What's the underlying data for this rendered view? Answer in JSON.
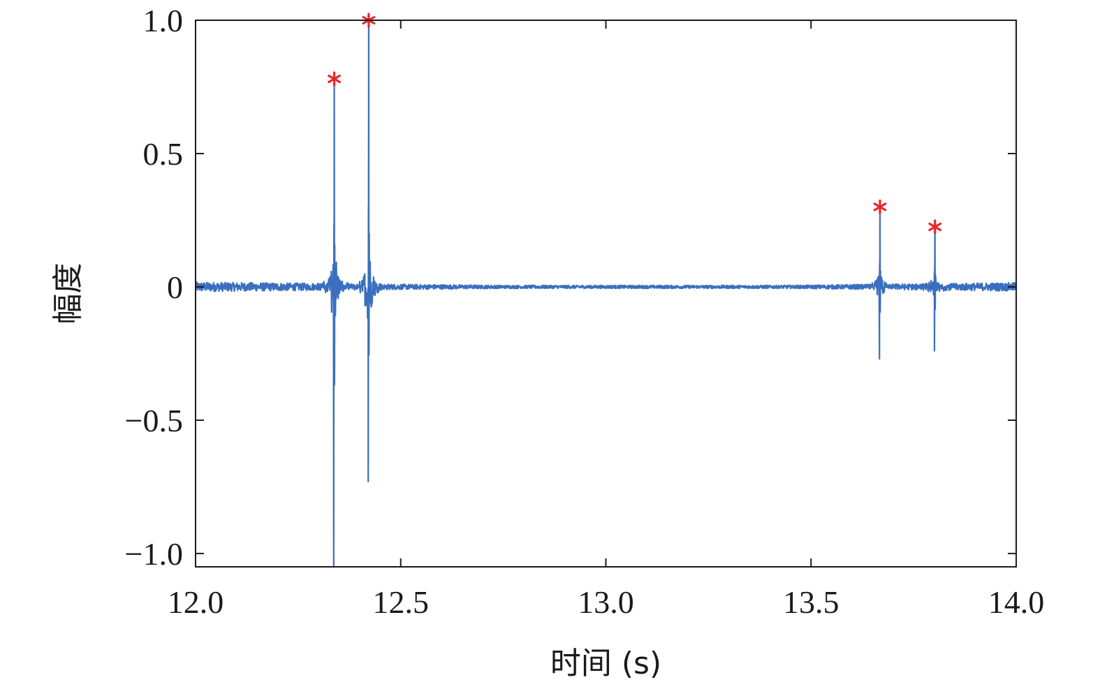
{
  "chart_data": {
    "type": "line",
    "title": "",
    "xlabel": "时间 (s)",
    "ylabel": "幅度",
    "xlim": [
      12.0,
      14.0
    ],
    "ylim": [
      -1.05,
      1.0
    ],
    "xticks": [
      12.0,
      12.5,
      13.0,
      13.5,
      14.0
    ],
    "xtick_labels": [
      "12.0",
      "12.5",
      "13.0",
      "13.5",
      "14.0"
    ],
    "yticks": [
      1.0,
      0.5,
      0,
      -0.5,
      -1.0
    ],
    "ytick_labels": [
      "1.0",
      "0.5",
      "0",
      "−0.5",
      "−1.0"
    ],
    "grid": false,
    "line_color": "#3a6fbf",
    "marker_color": "#e8262b",
    "events": [
      {
        "x": 12.338,
        "peak": 0.78,
        "trough": -1.05
      },
      {
        "x": 12.422,
        "peak": 1.0,
        "trough": -0.73
      },
      {
        "x": 13.668,
        "peak": 0.3,
        "trough": -0.27
      },
      {
        "x": 13.802,
        "peak": 0.225,
        "trough": -0.24
      }
    ],
    "peak_markers": [
      {
        "x": 12.338,
        "y": 0.78
      },
      {
        "x": 12.422,
        "y": 1.0
      },
      {
        "x": 13.668,
        "y": 0.3
      },
      {
        "x": 13.802,
        "y": 0.225
      }
    ]
  }
}
